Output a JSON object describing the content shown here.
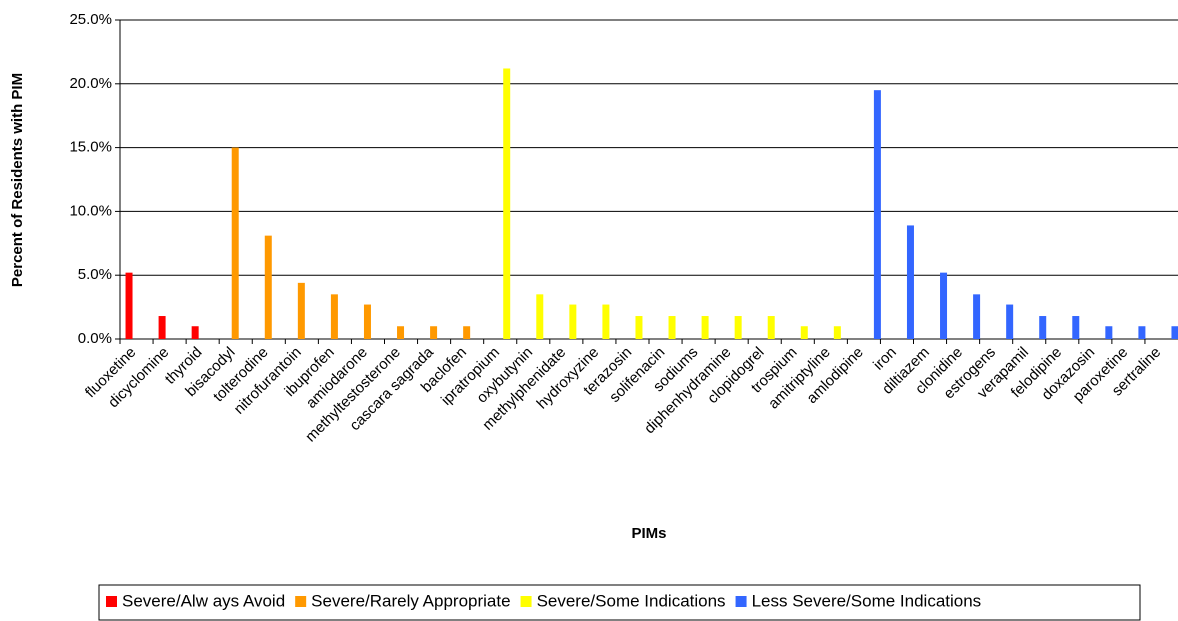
{
  "chart_data": {
    "type": "bar",
    "x_label": "PIMs",
    "y_label": "Percent of Residents with PIM",
    "categories": [
      "fluoxetine",
      "dicyclomine",
      "thyroid",
      "bisacodyl",
      "tolterodine",
      "nitrofurantoin",
      "ibuprofen",
      "amiodarone",
      "methyltestosterone",
      "cascara sagrada",
      "baclofen",
      "ipratropium",
      "oxybutynin",
      "methylphenidate",
      "hydroxyzine",
      "terazosin",
      "solifenacin",
      "sodiums",
      "diphenhydramine",
      "clopidogrel",
      "trospium",
      "amitriptyline",
      "amlodipine",
      "iron",
      "diltiazem",
      "clonidine",
      "estrogens",
      "verapamil",
      "felodipine",
      "doxazosin",
      "paroxetine",
      "sertraline"
    ],
    "series": [
      {
        "name": "Severe/Alw ays Avoid",
        "color": "#ff0000",
        "values": [
          5.2,
          1.8,
          1.0,
          null,
          null,
          null,
          null,
          null,
          null,
          null,
          null,
          null,
          null,
          null,
          null,
          null,
          null,
          null,
          null,
          null,
          null,
          null,
          null,
          null,
          null,
          null,
          null,
          null,
          null,
          null,
          null,
          null
        ]
      },
      {
        "name": "Severe/Rarely Appropriate",
        "color": "#ff9900",
        "values": [
          null,
          null,
          null,
          15.0,
          8.1,
          4.4,
          3.5,
          2.7,
          1.0,
          1.0,
          1.0,
          null,
          null,
          null,
          null,
          null,
          null,
          null,
          null,
          null,
          null,
          null,
          null,
          null,
          null,
          null,
          null,
          null,
          null,
          null,
          null,
          null
        ]
      },
      {
        "name": "Severe/Some Indications",
        "color": "#ffff00",
        "values": [
          null,
          null,
          null,
          null,
          null,
          null,
          null,
          null,
          null,
          null,
          null,
          21.2,
          3.5,
          2.7,
          2.7,
          1.8,
          1.8,
          1.8,
          1.8,
          1.8,
          1.0,
          1.0,
          null,
          null,
          null,
          null,
          null,
          null,
          null,
          null,
          null,
          null
        ]
      },
      {
        "name": "Less Severe/Some Indications",
        "color": "#3366ff",
        "values": [
          null,
          null,
          null,
          null,
          null,
          null,
          null,
          null,
          null,
          null,
          null,
          null,
          null,
          null,
          null,
          null,
          null,
          null,
          null,
          null,
          null,
          null,
          19.5,
          8.9,
          5.2,
          3.5,
          2.7,
          1.8,
          1.8,
          1.0,
          1.0,
          1.0
        ]
      }
    ],
    "ylim": [
      0,
      25
    ],
    "yticks": [
      {
        "value": 0,
        "label": "0.0%"
      },
      {
        "value": 5,
        "label": "5.0%"
      },
      {
        "value": 10,
        "label": "10.0%"
      },
      {
        "value": 15,
        "label": "15.0%"
      },
      {
        "value": 20,
        "label": "20.0%"
      },
      {
        "value": 25,
        "label": "25.0%"
      }
    ],
    "grid": true,
    "legend": "bottom"
  }
}
